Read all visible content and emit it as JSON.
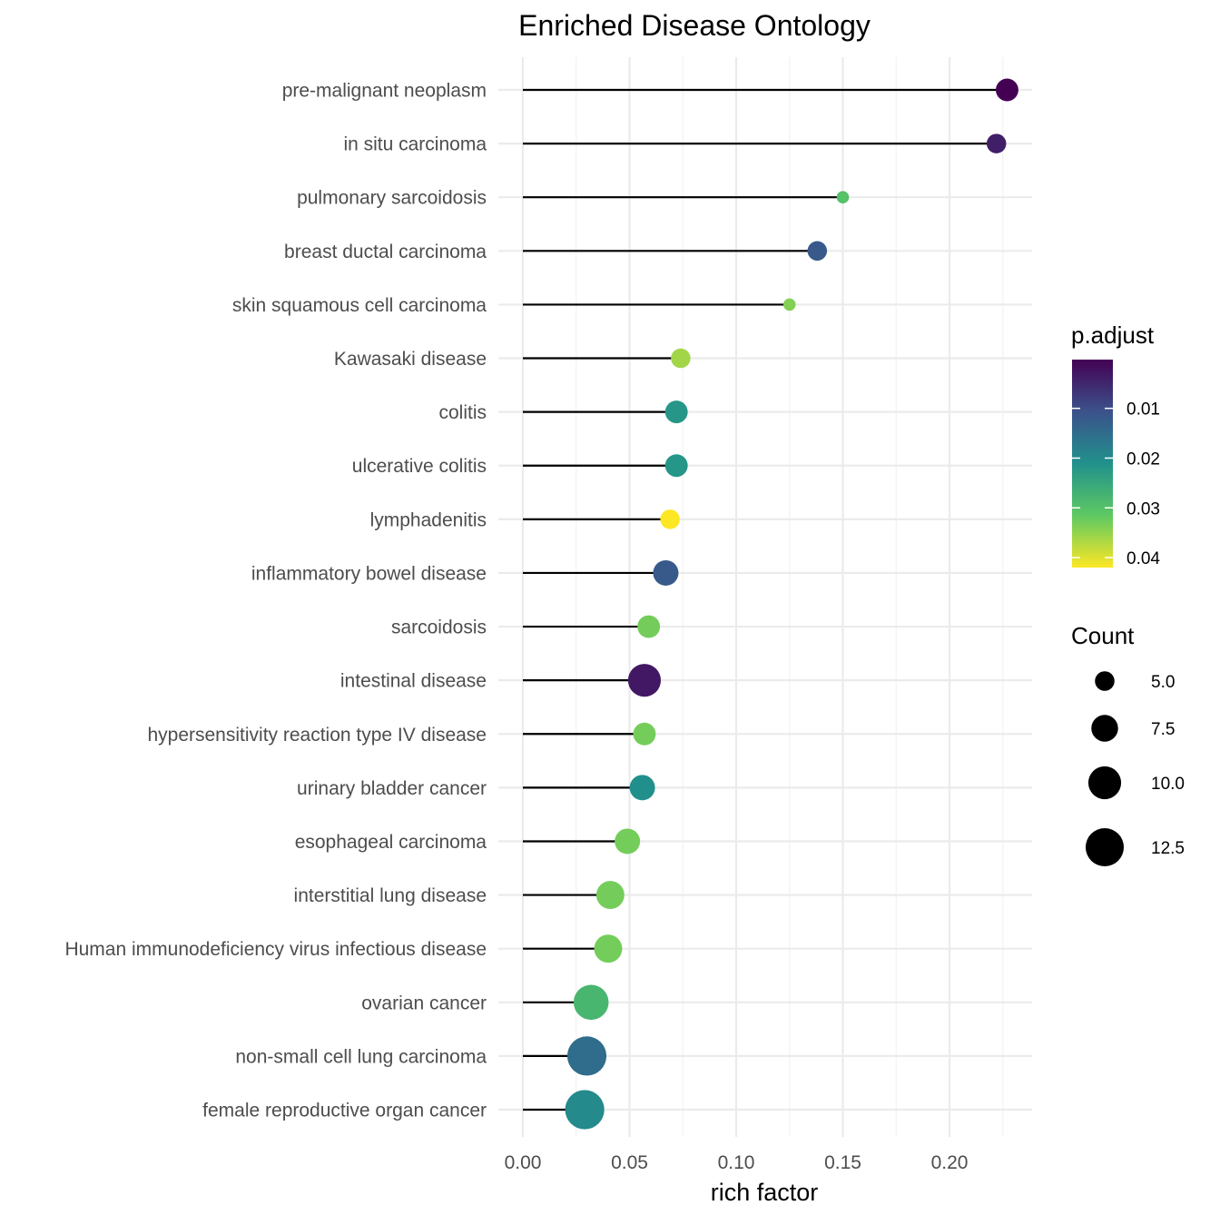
{
  "chart_data": {
    "type": "lollipop",
    "title": "Enriched Disease Ontology",
    "xlabel": "rich factor",
    "ylabel": "",
    "xlim": [
      0,
      0.238
    ],
    "x_ticks": [
      "0.00",
      "0.05",
      "0.10",
      "0.15",
      "0.20"
    ],
    "x_tick_values": [
      0,
      0.05,
      0.1,
      0.15,
      0.2
    ],
    "grid": true,
    "categories": [
      "pre-malignant neoplasm",
      "in situ carcinoma",
      "pulmonary sarcoidosis",
      "breast ductal carcinoma",
      "skin squamous cell carcinoma",
      "Kawasaki disease",
      "colitis",
      "ulcerative colitis",
      "lymphadenitis",
      "inflammatory bowel disease",
      "sarcoidosis",
      "intestinal disease",
      "hypersensitivity reaction type IV disease",
      "urinary bladder cancer",
      "esophageal carcinoma",
      "interstitial lung disease",
      "Human immunodeficiency virus infectious disease",
      "ovarian cancer",
      "non-small cell lung carcinoma",
      "female reproductive organ cancer"
    ],
    "rich_factor": [
      0.227,
      0.222,
      0.15,
      0.138,
      0.125,
      0.074,
      0.072,
      0.072,
      0.069,
      0.067,
      0.059,
      0.057,
      0.057,
      0.056,
      0.049,
      0.041,
      0.04,
      0.032,
      0.03,
      0.029
    ],
    "count": [
      6,
      5,
      3,
      5,
      3,
      5,
      6,
      6,
      5,
      7,
      6,
      10,
      6,
      7,
      7,
      8,
      8,
      11,
      13,
      13
    ],
    "p_adjust": [
      0.0002,
      0.004,
      0.03,
      0.012,
      0.034,
      0.036,
      0.022,
      0.022,
      0.042,
      0.012,
      0.033,
      0.003,
      0.033,
      0.021,
      0.033,
      0.033,
      0.033,
      0.028,
      0.015,
      0.02
    ],
    "color_legend": {
      "title": "p.adjust",
      "range": [
        0.0002,
        0.042
      ],
      "ticks": [
        "0.01",
        "0.02",
        "0.03",
        "0.04"
      ],
      "tick_values": [
        0.01,
        0.02,
        0.03,
        0.04
      ],
      "palette": [
        "#440154",
        "#3b528b",
        "#21918c",
        "#5ec962",
        "#fde725"
      ],
      "position": "right"
    },
    "size_legend": {
      "title": "Count",
      "labels": [
        "5.0",
        "7.5",
        "10.0",
        "12.5"
      ],
      "values": [
        5.0,
        7.5,
        10.0,
        12.5
      ],
      "position": "right"
    }
  }
}
